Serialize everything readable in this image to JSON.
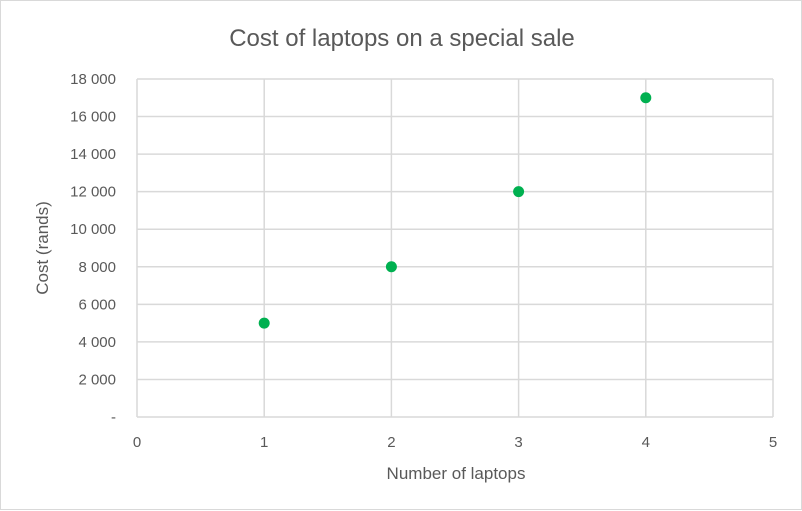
{
  "chart_data": {
    "type": "scatter",
    "title": "Cost of laptops on a special sale",
    "xlabel": "Number of laptops",
    "ylabel": "Cost (rands)",
    "xlim": [
      0,
      5
    ],
    "ylim": [
      0,
      18000
    ],
    "grid": true,
    "x_ticks": [
      0,
      1,
      2,
      3,
      4,
      5
    ],
    "x_tick_labels": [
      "0",
      "1",
      "2",
      "3",
      "4",
      "5"
    ],
    "y_ticks": [
      0,
      2000,
      4000,
      6000,
      8000,
      10000,
      12000,
      14000,
      16000,
      18000
    ],
    "y_tick_labels": [
      "-",
      "2 000",
      "4 000",
      "6 000",
      "8 000",
      "10 000",
      "12 000",
      "14 000",
      "16 000",
      "18 000"
    ],
    "series": [
      {
        "x": [
          1,
          2,
          3,
          4
        ],
        "values": [
          5000,
          8000,
          12000,
          17000
        ]
      }
    ],
    "colors": {
      "marker": "#00b050",
      "grid": "#d9d9d9",
      "text": "#595959"
    }
  }
}
